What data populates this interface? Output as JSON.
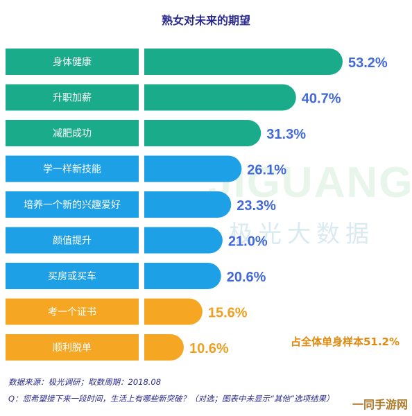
{
  "header": {
    "title": "熟女对未来的期望"
  },
  "note": "占全体单身样本51.2%",
  "footer": {
    "source": "数据来源：极光调研；取数周期：2018.08",
    "question": "Q：您希望接下来一段时间，生活上有哪些新突破？（对选；图表中未显示“其他”选项结果）"
  },
  "watermark": {
    "brand": "JIGUANG",
    "brand_cn": "极光大数据"
  },
  "corner_badge": "一同手游网",
  "colors": {
    "green": "#1aab8a",
    "blue": "#1ea0e6",
    "orange": "#f5a623",
    "value_text": "#4169d9",
    "value_text_orange": "#f0a020"
  },
  "chart_data": {
    "type": "bar",
    "orientation": "horizontal",
    "title": "熟女对未来的期望",
    "xlabel": "",
    "ylabel": "",
    "xlim": [
      0,
      60
    ],
    "categories": [
      "身体健康",
      "升职加薪",
      "减肥成功",
      "学一样新技能",
      "培养一个新的兴趣爱好",
      "颜值提升",
      "买房或买车",
      "考一个证书",
      "顺利脱单"
    ],
    "values": [
      53.2,
      40.7,
      31.3,
      26.1,
      23.3,
      21.0,
      20.6,
      15.6,
      10.6
    ],
    "value_labels": [
      "53.2%",
      "40.7%",
      "31.3%",
      "26.1%",
      "23.3%",
      "21.0%",
      "20.6%",
      "15.6%",
      "10.6%"
    ],
    "groups": [
      "green",
      "green",
      "green",
      "blue",
      "blue",
      "blue",
      "blue",
      "orange",
      "orange"
    ],
    "grid": false,
    "legend": "none"
  }
}
